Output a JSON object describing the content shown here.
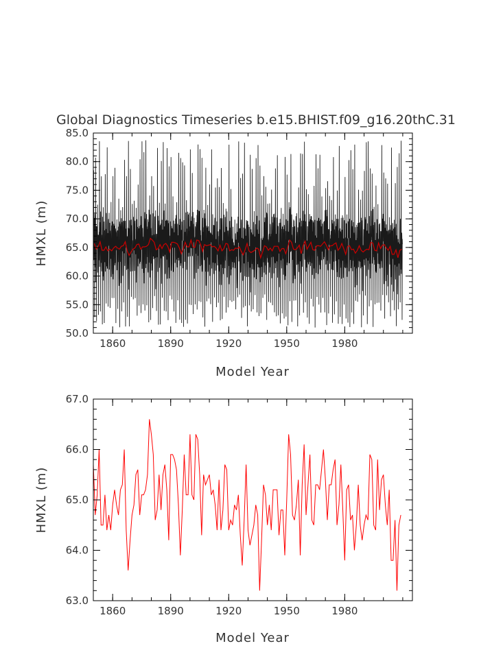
{
  "figure_title": "Global Diagnostics Timeseries b.e15.BHIST.f09_g16.20thC.31",
  "chart_data": [
    {
      "type": "line",
      "description": "monthly values (black) with annual mean (red)",
      "xlabel": "Model Year",
      "ylabel": "HMXL (m)",
      "xlim": [
        1850,
        2015
      ],
      "ylim": [
        50.0,
        85.0
      ],
      "x_ticks": [
        1860,
        1890,
        1920,
        1950,
        1980
      ],
      "x_tick_labels": [
        "1860",
        "1890",
        "1920",
        "1950",
        "1980"
      ],
      "y_ticks": [
        50.0,
        55.0,
        60.0,
        65.0,
        70.0,
        75.0,
        80.0,
        85.0
      ],
      "y_tick_labels": [
        "50.0",
        "55.0",
        "60.0",
        "65.0",
        "70.0",
        "75.0",
        "80.0",
        "85.0"
      ],
      "monthly_peak_range": [
        68,
        84
      ],
      "monthly_trough_range": [
        51,
        57
      ],
      "series": [
        {
          "color": "#cc0000",
          "values_ref": "annual_mean"
        }
      ]
    },
    {
      "type": "line",
      "xlabel": "Model Year",
      "ylabel": "HMXL (m)",
      "xlim": [
        1850,
        2015
      ],
      "ylim": [
        63.0,
        67.0
      ],
      "x_ticks": [
        1860,
        1890,
        1920,
        1950,
        1980
      ],
      "x_tick_labels": [
        "1860",
        "1890",
        "1920",
        "1950",
        "1980"
      ],
      "y_ticks": [
        63.0,
        64.0,
        65.0,
        66.0,
        67.0
      ],
      "y_tick_labels": [
        "63.0",
        "64.0",
        "65.0",
        "66.0",
        "67.0"
      ],
      "series": [
        {
          "color": "#ff0000",
          "values_ref": "annual_mean"
        }
      ]
    }
  ],
  "annual_mean": {
    "x_start": 1850,
    "values": [
      65.7,
      64.7,
      65.1,
      66.0,
      64.5,
      64.5,
      65.1,
      64.4,
      64.7,
      64.4,
      64.9,
      65.2,
      64.9,
      64.7,
      65.2,
      65.3,
      66.0,
      64.4,
      63.6,
      64.2,
      64.7,
      64.9,
      65.5,
      65.6,
      64.7,
      65.1,
      65.1,
      65.2,
      65.5,
      66.6,
      66.3,
      65.9,
      64.6,
      64.8,
      65.5,
      64.8,
      65.5,
      65.7,
      65.2,
      64.2,
      65.9,
      65.9,
      65.8,
      65.6,
      64.9,
      63.9,
      64.8,
      65.9,
      65.1,
      65.1,
      66.3,
      65.1,
      65.0,
      66.3,
      66.2,
      65.5,
      64.3,
      65.5,
      65.3,
      65.4,
      65.5,
      65.1,
      65.2,
      64.9,
      64.4,
      65.4,
      64.4,
      64.8,
      65.7,
      65.6,
      64.4,
      64.6,
      64.5,
      64.9,
      64.8,
      65.1,
      64.3,
      63.7,
      64.6,
      65.7,
      64.4,
      64.1,
      64.3,
      64.5,
      64.9,
      64.7,
      63.2,
      64.2,
      65.3,
      65.1,
      64.5,
      64.9,
      64.4,
      65.2,
      65.2,
      65.2,
      64.3,
      64.8,
      64.8,
      63.9,
      65.0,
      66.3,
      65.9,
      64.7,
      64.6,
      64.9,
      65.4,
      63.9,
      65.3,
      66.1,
      64.7,
      65.3,
      65.9,
      64.6,
      64.5,
      65.3,
      65.3,
      65.2,
      65.6,
      66.0,
      65.4,
      64.6,
      65.3,
      65.3,
      65.6,
      65.8,
      64.5,
      64.9,
      65.7,
      64.8,
      63.8,
      65.2,
      65.3,
      64.6,
      64.7,
      64.0,
      64.5,
      65.3,
      64.5,
      64.2,
      64.5,
      64.7,
      64.6,
      65.9,
      65.8,
      64.5,
      64.4,
      65.8,
      64.8,
      65.4,
      65.5,
      64.9,
      64.5,
      65.2,
      63.8,
      63.8,
      64.6,
      63.2,
      64.5,
      64.7
    ]
  }
}
